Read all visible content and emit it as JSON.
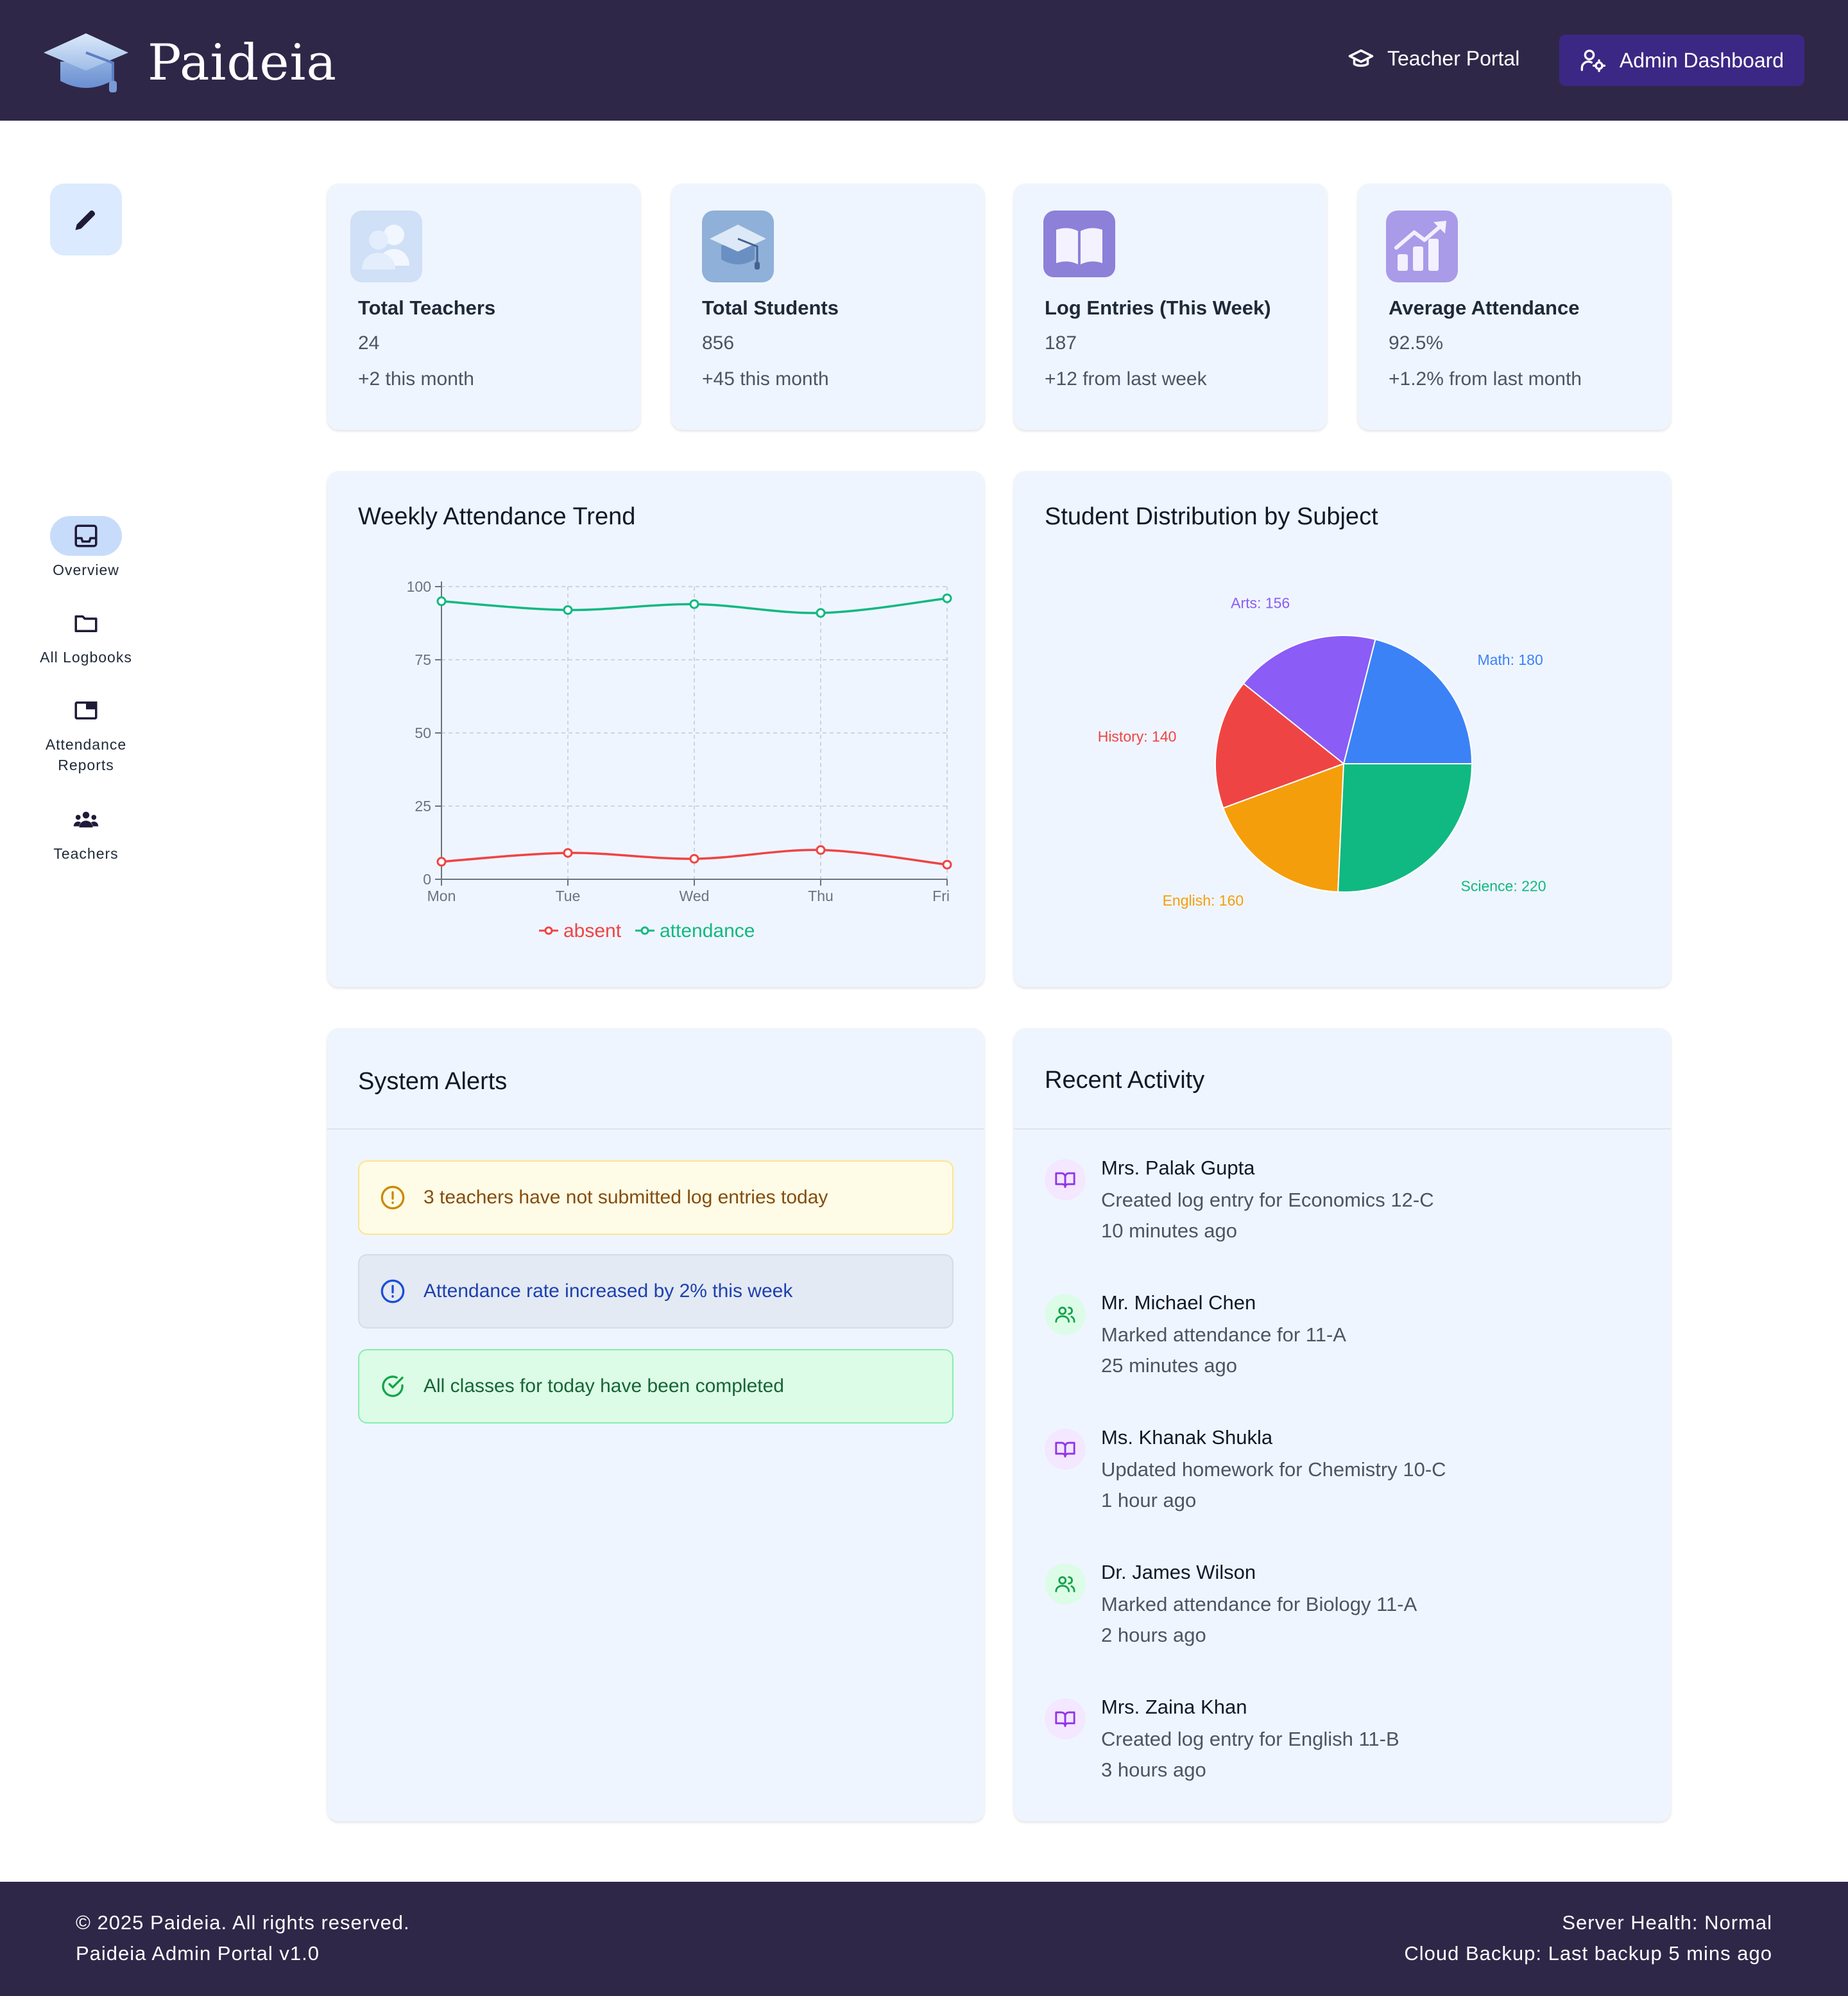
{
  "header": {
    "brand": "Paideia",
    "teacher_portal": "Teacher Portal",
    "admin_dashboard": "Admin Dashboard"
  },
  "sidebar": {
    "items": [
      {
        "label": "Overview",
        "icon": "inbox-icon",
        "active": true
      },
      {
        "label": "All Logbooks",
        "icon": "folder-icon",
        "active": false
      },
      {
        "label": "Attendance Reports",
        "icon": "window-icon",
        "active": false
      },
      {
        "label": "Teachers",
        "icon": "people-icon",
        "active": false
      }
    ]
  },
  "stats": [
    {
      "title": "Total Teachers",
      "value": "24",
      "change": "+2 this month",
      "icon": "teachers-icon"
    },
    {
      "title": "Total Students",
      "value": "856",
      "change": "+45 this month",
      "icon": "graduation-cap-icon"
    },
    {
      "title": "Log Entries (This Week)",
      "value": "187",
      "change": "+12 from last week",
      "icon": "open-book-icon"
    },
    {
      "title": "Average Attendance",
      "value": "92.5%",
      "change": "+1.2% from last month",
      "icon": "chart-up-icon"
    }
  ],
  "attendance_panel": {
    "title": "Weekly Attendance Trend"
  },
  "distribution_panel": {
    "title": "Student Distribution by Subject"
  },
  "chart_data": [
    {
      "type": "line",
      "x": [
        "Mon",
        "Tue",
        "Wed",
        "Thu",
        "Fri"
      ],
      "series": [
        {
          "name": "absent",
          "values": [
            6,
            9,
            7,
            10,
            5
          ],
          "color": "#ef4444"
        },
        {
          "name": "attendance",
          "values": [
            95,
            92,
            94,
            91,
            96
          ],
          "color": "#10b981"
        }
      ],
      "ylim": [
        0,
        100
      ],
      "yticks": [
        0,
        25,
        50,
        75,
        100
      ],
      "grid": true,
      "legend": "bottom"
    },
    {
      "type": "pie",
      "slices": [
        {
          "label": "Math: 180",
          "value": 180,
          "color": "#3b82f6"
        },
        {
          "label": "Arts: 156",
          "value": 156,
          "color": "#8b5cf6"
        },
        {
          "label": "History: 140",
          "value": 140,
          "color": "#ef4444"
        },
        {
          "label": "English: 160",
          "value": 160,
          "color": "#f59e0b"
        },
        {
          "label": "Science: 220",
          "value": 220,
          "color": "#10b981"
        }
      ]
    }
  ],
  "alerts_panel": {
    "title": "System Alerts",
    "alerts": [
      {
        "type": "warning",
        "text": "3 teachers have not submitted log entries today"
      },
      {
        "type": "info",
        "text": "Attendance rate increased by 2% this week"
      },
      {
        "type": "success",
        "text": "All classes for today have been completed"
      }
    ]
  },
  "activity_panel": {
    "title": "Recent Activity",
    "items": [
      {
        "name": "Mrs. Palak Gupta",
        "desc": "Created log entry for Economics 12-C",
        "time": "10 minutes ago",
        "icon": "book-icon"
      },
      {
        "name": "Mr. Michael Chen",
        "desc": "Marked attendance for 11-A",
        "time": "25 minutes ago",
        "icon": "users-icon"
      },
      {
        "name": "Ms. Khanak Shukla",
        "desc": "Updated homework for Chemistry 10-C",
        "time": "1 hour ago",
        "icon": "book-icon"
      },
      {
        "name": "Dr. James Wilson",
        "desc": "Marked attendance for Biology 11-A",
        "time": "2 hours ago",
        "icon": "users-icon"
      },
      {
        "name": "Mrs. Zaina Khan",
        "desc": "Created log entry for English 11-B",
        "time": "3 hours ago",
        "icon": "book-icon"
      }
    ]
  },
  "footer": {
    "copyright": "© 2025 Paideia. All rights reserved.",
    "version": "Paideia Admin Portal v1.0",
    "server_health": "Server Health: Normal",
    "backup": "Cloud Backup: Last backup 5 mins ago"
  }
}
